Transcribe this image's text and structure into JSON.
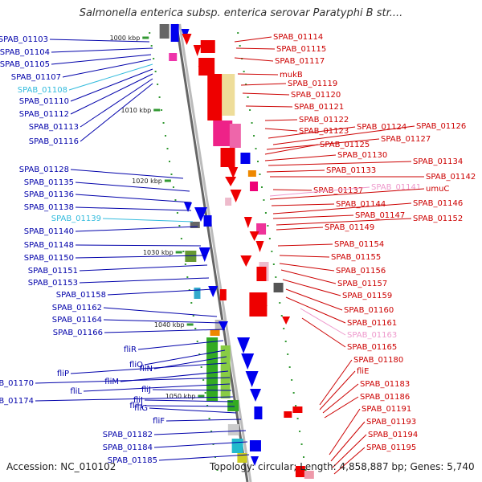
{
  "title": "Salmonella enterica subsp. enterica serovar Paratyphi B str....",
  "accession": "Accession: NC_010102",
  "topology": "Topology: circular; Length: 4,858,887 bp; Genes: 5,740",
  "kbp_marks": [
    "1000 kbp",
    "1010 kbp",
    "1020 kbp",
    "1030 kbp",
    "1040 kbp",
    "1050 kbp"
  ],
  "left_labels": [
    {
      "text": "SPAB_01103",
      "color": "#0000aa"
    },
    {
      "text": "SPAB_01104",
      "color": "#0000aa"
    },
    {
      "text": "SPAB_01105",
      "color": "#0000aa"
    },
    {
      "text": "SPAB_01107",
      "color": "#0000aa"
    },
    {
      "text": "SPAB_01108",
      "color": "#33bbdd"
    },
    {
      "text": "SPAB_01110",
      "color": "#0000aa"
    },
    {
      "text": "SPAB_01112",
      "color": "#0000aa"
    },
    {
      "text": "SPAB_01113",
      "color": "#0000aa"
    },
    {
      "text": "SPAB_01116",
      "color": "#0000aa"
    },
    {
      "text": "SPAB_01128",
      "color": "#0000aa"
    },
    {
      "text": "SPAB_01135",
      "color": "#0000aa"
    },
    {
      "text": "SPAB_01136",
      "color": "#0000aa"
    },
    {
      "text": "SPAB_01138",
      "color": "#0000aa"
    },
    {
      "text": "SPAB_01139",
      "color": "#33bbdd"
    },
    {
      "text": "SPAB_01140",
      "color": "#0000aa"
    },
    {
      "text": "SPAB_01148",
      "color": "#0000aa"
    },
    {
      "text": "SPAB_01150",
      "color": "#0000aa"
    },
    {
      "text": "SPAB_01151",
      "color": "#0000aa"
    },
    {
      "text": "SPAB_01153",
      "color": "#0000aa"
    },
    {
      "text": "SPAB_01158",
      "color": "#0000aa"
    },
    {
      "text": "SPAB_01162",
      "color": "#0000aa"
    },
    {
      "text": "SPAB_01164",
      "color": "#0000aa"
    },
    {
      "text": "SPAB_01166",
      "color": "#0000aa"
    },
    {
      "text": "fliR",
      "color": "#0000aa"
    },
    {
      "text": "fliQ",
      "color": "#0000aa"
    },
    {
      "text": "fliN",
      "color": "#0000aa"
    },
    {
      "text": "fliP",
      "color": "#0000aa"
    },
    {
      "text": "fliM",
      "color": "#0000aa"
    },
    {
      "text": "SPAB_01170",
      "color": "#0000aa"
    },
    {
      "text": "fliL",
      "color": "#0000aa"
    },
    {
      "text": "fliJ",
      "color": "#0000aa"
    },
    {
      "text": "SPAB_01174",
      "color": "#0000aa"
    },
    {
      "text": "fliI",
      "color": "#0000aa"
    },
    {
      "text": "fliH",
      "color": "#0000aa"
    },
    {
      "text": "fliG",
      "color": "#0000aa"
    },
    {
      "text": "fliF",
      "color": "#0000aa"
    },
    {
      "text": "SPAB_01182",
      "color": "#0000aa"
    },
    {
      "text": "SPAB_01184",
      "color": "#0000aa"
    },
    {
      "text": "SPAB_01185",
      "color": "#0000aa"
    }
  ],
  "right_labels": [
    {
      "text": "SPAB_01114",
      "color": "#cc0000"
    },
    {
      "text": "SPAB_01115",
      "color": "#cc0000"
    },
    {
      "text": "SPAB_01117",
      "color": "#cc0000"
    },
    {
      "text": "mukB",
      "color": "#cc0000"
    },
    {
      "text": "SPAB_01119",
      "color": "#cc0000"
    },
    {
      "text": "SPAB_01120",
      "color": "#cc0000"
    },
    {
      "text": "SPAB_01121",
      "color": "#cc0000"
    },
    {
      "text": "SPAB_01122",
      "color": "#cc0000"
    },
    {
      "text": "SPAB_01123",
      "color": "#cc0000"
    },
    {
      "text": "SPAB_01124",
      "color": "#cc0000"
    },
    {
      "text": "SPAB_01126",
      "color": "#cc0000"
    },
    {
      "text": "SPAB_01127",
      "color": "#cc0000"
    },
    {
      "text": "SPAB_01125",
      "color": "#cc0000"
    },
    {
      "text": "SPAB_01130",
      "color": "#cc0000"
    },
    {
      "text": "SPAB_01134",
      "color": "#cc0000"
    },
    {
      "text": "SPAB_01133",
      "color": "#cc0000"
    },
    {
      "text": "SPAB_01142",
      "color": "#cc0000"
    },
    {
      "text": "SPAB_01137",
      "color": "#cc0000"
    },
    {
      "text": "SPAB_01141",
      "color": "#ee99cc"
    },
    {
      "text": "umuC",
      "color": "#cc0000"
    },
    {
      "text": "SPAB_01144",
      "color": "#cc0000"
    },
    {
      "text": "SPAB_01146",
      "color": "#cc0000"
    },
    {
      "text": "SPAB_01147",
      "color": "#cc0000"
    },
    {
      "text": "SPAB_01152",
      "color": "#cc0000"
    },
    {
      "text": "SPAB_01149",
      "color": "#cc0000"
    },
    {
      "text": "SPAB_01154",
      "color": "#cc0000"
    },
    {
      "text": "SPAB_01155",
      "color": "#cc0000"
    },
    {
      "text": "SPAB_01156",
      "color": "#cc0000"
    },
    {
      "text": "SPAB_01157",
      "color": "#cc0000"
    },
    {
      "text": "SPAB_01159",
      "color": "#cc0000"
    },
    {
      "text": "SPAB_01160",
      "color": "#cc0000"
    },
    {
      "text": "SPAB_01161",
      "color": "#cc0000"
    },
    {
      "text": "SPAB_01163",
      "color": "#ee99cc"
    },
    {
      "text": "SPAB_01165",
      "color": "#cc0000"
    },
    {
      "text": "SPAB_01180",
      "color": "#cc0000"
    },
    {
      "text": "fliE",
      "color": "#cc0000"
    },
    {
      "text": "SPAB_01183",
      "color": "#cc0000"
    },
    {
      "text": "SPAB_01186",
      "color": "#cc0000"
    },
    {
      "text": "SPAB_01191",
      "color": "#cc0000"
    },
    {
      "text": "SPAB_01193",
      "color": "#cc0000"
    },
    {
      "text": "SPAB_01194",
      "color": "#cc0000"
    },
    {
      "text": "SPAB_01195",
      "color": "#cc0000"
    }
  ],
  "colors": {
    "backbone": "#888888",
    "forward_gene": "#ee0000",
    "reverse_gene": "#0000ee",
    "tick": "#339933",
    "leader_left": "#0000aa",
    "leader_right": "#cc0000"
  }
}
